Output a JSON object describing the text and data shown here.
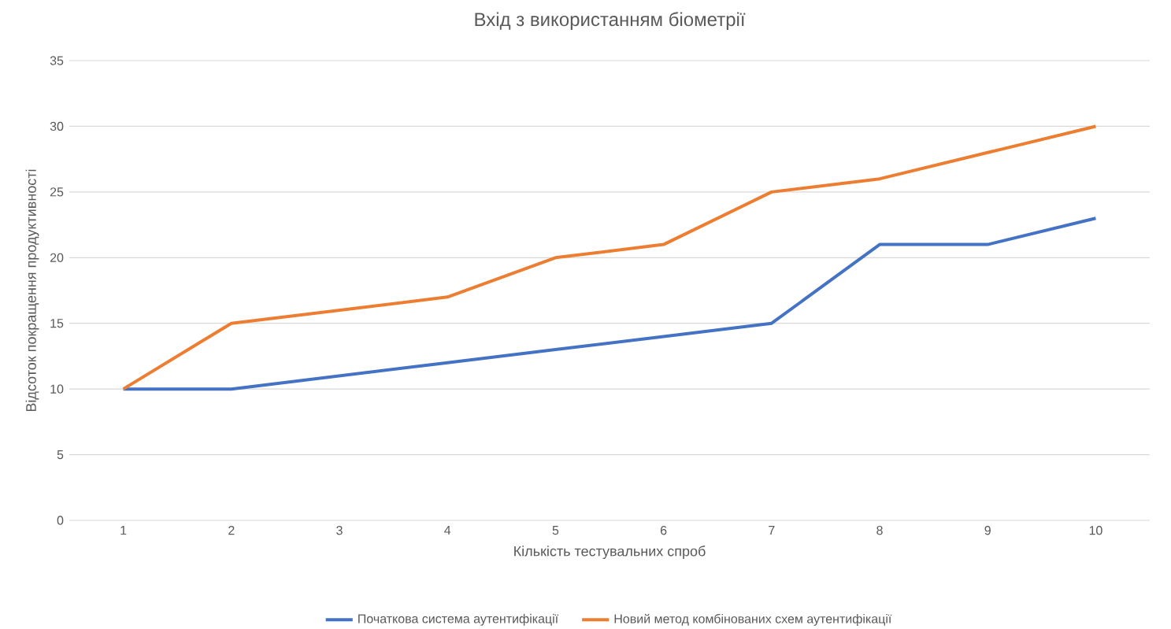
{
  "chart_data": {
    "type": "line",
    "title": "Вхід з використанням біометрії",
    "xlabel": "Кількість тестувальних спроб",
    "ylabel": "Відсоток покращення продуктивності",
    "categories": [
      "1",
      "2",
      "3",
      "4",
      "5",
      "6",
      "7",
      "8",
      "9",
      "10"
    ],
    "series": [
      {
        "name": "Початкова система аутентифікації",
        "color": "#4472c4",
        "values": [
          10,
          10,
          11,
          12,
          13,
          14,
          15,
          21,
          21,
          23
        ]
      },
      {
        "name": "Новий метод комбінованих схем аутентифікації",
        "color": "#ed7d31",
        "values": [
          10,
          15,
          16,
          17,
          20,
          21,
          25,
          26,
          28,
          30
        ]
      }
    ],
    "ylim": [
      0,
      35
    ],
    "yticks": [
      0,
      5,
      10,
      15,
      20,
      25,
      30,
      35
    ],
    "grid": "y",
    "legend": "bottom",
    "marker": "none",
    "line_style": "solid"
  }
}
